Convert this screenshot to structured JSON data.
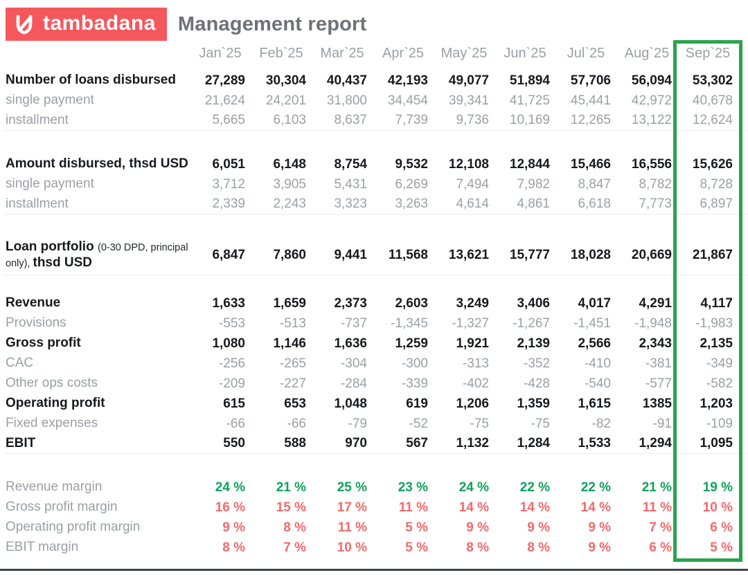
{
  "header": {
    "logo_text": "tambadana",
    "title": "Management report"
  },
  "colors": {
    "brand": "#f5585c",
    "title_gray": "#6d7178",
    "muted_gray": "#9aa0a6",
    "text_dark": "#17191d",
    "margin_green": "#0fa25b",
    "margin_red": "#f5696b",
    "highlight_border": "#28a54b"
  },
  "table": {
    "months": [
      "Jan`25",
      "Feb`25",
      "Mar`25",
      "Apr`25",
      "May`25",
      "Jun`25",
      "Jul`25",
      "Aug`25",
      "Sep`25"
    ],
    "highlighted_month": "Sep`25",
    "sections": [
      {
        "rows": [
          {
            "label": "Number of loans disbursed",
            "style": "bold",
            "values": [
              "27,289",
              "30,304",
              "40,437",
              "42,193",
              "49,077",
              "51,894",
              "57,706",
              "56,094",
              "53,302"
            ]
          },
          {
            "label": "single payment",
            "style": "muted",
            "values": [
              "21,624",
              "24,201",
              "31,800",
              "34,454",
              "39,341",
              "41,725",
              "45,441",
              "42,972",
              "40,678"
            ]
          },
          {
            "label": "installment",
            "style": "muted",
            "values": [
              "5,665",
              "6,103",
              "8,637",
              "7,739",
              "9,736",
              "10,169",
              "12,265",
              "13,122",
              "12,624"
            ]
          }
        ]
      },
      {
        "rows": [
          {
            "label": "Amount disbursed, thsd USD",
            "style": "bold",
            "values": [
              "6,051",
              "6,148",
              "8,754",
              "9,532",
              "12,108",
              "12,844",
              "15,466",
              "16,556",
              "15,626"
            ]
          },
          {
            "label": "single payment",
            "style": "muted",
            "values": [
              "3,712",
              "3,905",
              "5,431",
              "6,269",
              "7,494",
              "7,982",
              "8,847",
              "8,782",
              "8,728"
            ]
          },
          {
            "label": "installment",
            "style": "muted",
            "values": [
              "2,339",
              "2,243",
              "3,323",
              "3,263",
              "4,614",
              "4,861",
              "6,618",
              "7,773",
              "6,897"
            ]
          }
        ]
      },
      {
        "rows": [
          {
            "tall": true,
            "style": "bold",
            "label_parts": [
              {
                "text": "Loan portfolio ",
                "style": "bold"
              },
              {
                "text": "(0-30 DPD, principal only), ",
                "style": "small"
              },
              {
                "text": "thsd USD",
                "style": "bold"
              }
            ],
            "values": [
              "6,847",
              "7,860",
              "9,441",
              "11,568",
              "13,621",
              "15,777",
              "18,028",
              "20,669",
              "21,867"
            ]
          }
        ]
      },
      {
        "rows": [
          {
            "label": "Revenue",
            "style": "bold",
            "values": [
              "1,633",
              "1,659",
              "2,373",
              "2,603",
              "3,249",
              "3,406",
              "4,017",
              "4,291",
              "4,117"
            ]
          },
          {
            "label": "Provisions",
            "style": "muted",
            "values": [
              "-553",
              "-513",
              "-737",
              "-1,345",
              "-1,327",
              "-1,267",
              "-1,451",
              "-1,948",
              "-1,983"
            ]
          },
          {
            "label": "Gross profit",
            "style": "bold",
            "values": [
              "1,080",
              "1,146",
              "1,636",
              "1,259",
              "1,921",
              "2,139",
              "2,566",
              "2,343",
              "2,135"
            ]
          },
          {
            "label": "CAC",
            "style": "muted",
            "values": [
              "-256",
              "-265",
              "-304",
              "-300",
              "-313",
              "-352",
              "-410",
              "-381",
              "-349"
            ]
          },
          {
            "label": "Other ops costs",
            "style": "muted",
            "values": [
              "-209",
              "-227",
              "-284",
              "-339",
              "-402",
              "-428",
              "-540",
              "-577",
              "-582"
            ]
          },
          {
            "label": "Operating profit",
            "style": "bold",
            "values": [
              "615",
              "653",
              "1,048",
              "619",
              "1,206",
              "1,359",
              "1,615",
              "1385",
              "1,203"
            ]
          },
          {
            "label": "Fixed expenses",
            "style": "muted",
            "values": [
              "-66",
              "-66",
              "-79",
              "-52",
              "-75",
              "-75",
              "-82",
              "-91",
              "-109"
            ]
          },
          {
            "label": "EBIT",
            "style": "bold",
            "values": [
              "550",
              "588",
              "970",
              "567",
              "1,132",
              "1,284",
              "1,533",
              "1,294",
              "1,095"
            ]
          }
        ]
      },
      {
        "rows": [
          {
            "label": "Revenue margin",
            "style": "muted",
            "color": "green",
            "values": [
              "24 %",
              "21 %",
              "25 %",
              "23 %",
              "24 %",
              "22 %",
              "22 %",
              "21 %",
              "19 %"
            ]
          },
          {
            "label": "Gross profit margin",
            "style": "muted",
            "color": "red",
            "values": [
              "16 %",
              "15 %",
              "17 %",
              "11 %",
              "14 %",
              "14 %",
              "14 %",
              "11 %",
              "10 %"
            ]
          },
          {
            "label": "Operating profit margin",
            "style": "muted",
            "color": "red",
            "values": [
              "9 %",
              "8 %",
              "11 %",
              "5 %",
              "9 %",
              "9 %",
              "9 %",
              "7 %",
              "6 %"
            ]
          },
          {
            "label": "EBIT margin",
            "style": "muted",
            "color": "red",
            "values": [
              "8 %",
              "7 %",
              "10 %",
              "5 %",
              "8 %",
              "8 %",
              "9 %",
              "6 %",
              "5 %"
            ]
          }
        ]
      }
    ]
  }
}
